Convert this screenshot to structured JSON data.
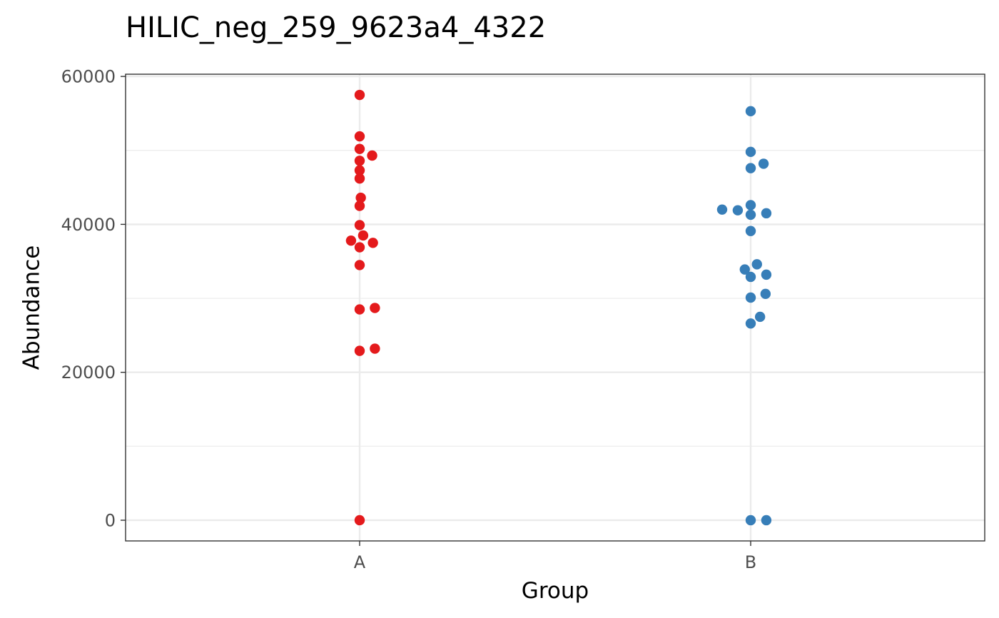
{
  "chart_data": {
    "type": "scatter",
    "title": "HILIC_neg_259_9623a4_4322",
    "xlabel": "Group",
    "ylabel": "Abundance",
    "categories": [
      "A",
      "B"
    ],
    "ylim": [
      -2800,
      60300
    ],
    "yticks": [
      0,
      20000,
      40000,
      60000
    ],
    "grid": true,
    "legend": "none",
    "series": [
      {
        "category": "A",
        "color": "#e41a1c",
        "points": [
          {
            "jitter": 0.0,
            "y": 57500
          },
          {
            "jitter": 0.0,
            "y": 51900
          },
          {
            "jitter": 0.0,
            "y": 50200
          },
          {
            "jitter": 0.032,
            "y": 49300
          },
          {
            "jitter": 0.0,
            "y": 48600
          },
          {
            "jitter": 0.0,
            "y": 47300
          },
          {
            "jitter": 0.0,
            "y": 46200
          },
          {
            "jitter": 0.003,
            "y": 43600
          },
          {
            "jitter": 0.0,
            "y": 42500
          },
          {
            "jitter": 0.0,
            "y": 39900
          },
          {
            "jitter": 0.009,
            "y": 38500
          },
          {
            "jitter": -0.022,
            "y": 37800
          },
          {
            "jitter": 0.034,
            "y": 37500
          },
          {
            "jitter": 0.0,
            "y": 36900
          },
          {
            "jitter": 0.0,
            "y": 34500
          },
          {
            "jitter": 0.039,
            "y": 28700
          },
          {
            "jitter": 0.0,
            "y": 28500
          },
          {
            "jitter": 0.039,
            "y": 23200
          },
          {
            "jitter": 0.0,
            "y": 22900
          },
          {
            "jitter": 0.0,
            "y": 0
          }
        ]
      },
      {
        "category": "B",
        "color": "#377eb8",
        "points": [
          {
            "jitter": 0.0,
            "y": 55300
          },
          {
            "jitter": 0.0,
            "y": 49800
          },
          {
            "jitter": 0.033,
            "y": 48200
          },
          {
            "jitter": 0.0,
            "y": 47600
          },
          {
            "jitter": 0.0,
            "y": 42600
          },
          {
            "jitter": -0.073,
            "y": 42000
          },
          {
            "jitter": -0.033,
            "y": 41900
          },
          {
            "jitter": 0.04,
            "y": 41500
          },
          {
            "jitter": 0.0,
            "y": 41300
          },
          {
            "jitter": 0.0,
            "y": 39100
          },
          {
            "jitter": 0.016,
            "y": 34600
          },
          {
            "jitter": -0.015,
            "y": 33900
          },
          {
            "jitter": 0.04,
            "y": 33200
          },
          {
            "jitter": 0.0,
            "y": 32900
          },
          {
            "jitter": 0.038,
            "y": 30600
          },
          {
            "jitter": 0.0,
            "y": 30100
          },
          {
            "jitter": 0.024,
            "y": 27500
          },
          {
            "jitter": 0.0,
            "y": 26600
          },
          {
            "jitter": 0.0,
            "y": 0
          },
          {
            "jitter": 0.04,
            "y": 0
          }
        ]
      }
    ]
  }
}
